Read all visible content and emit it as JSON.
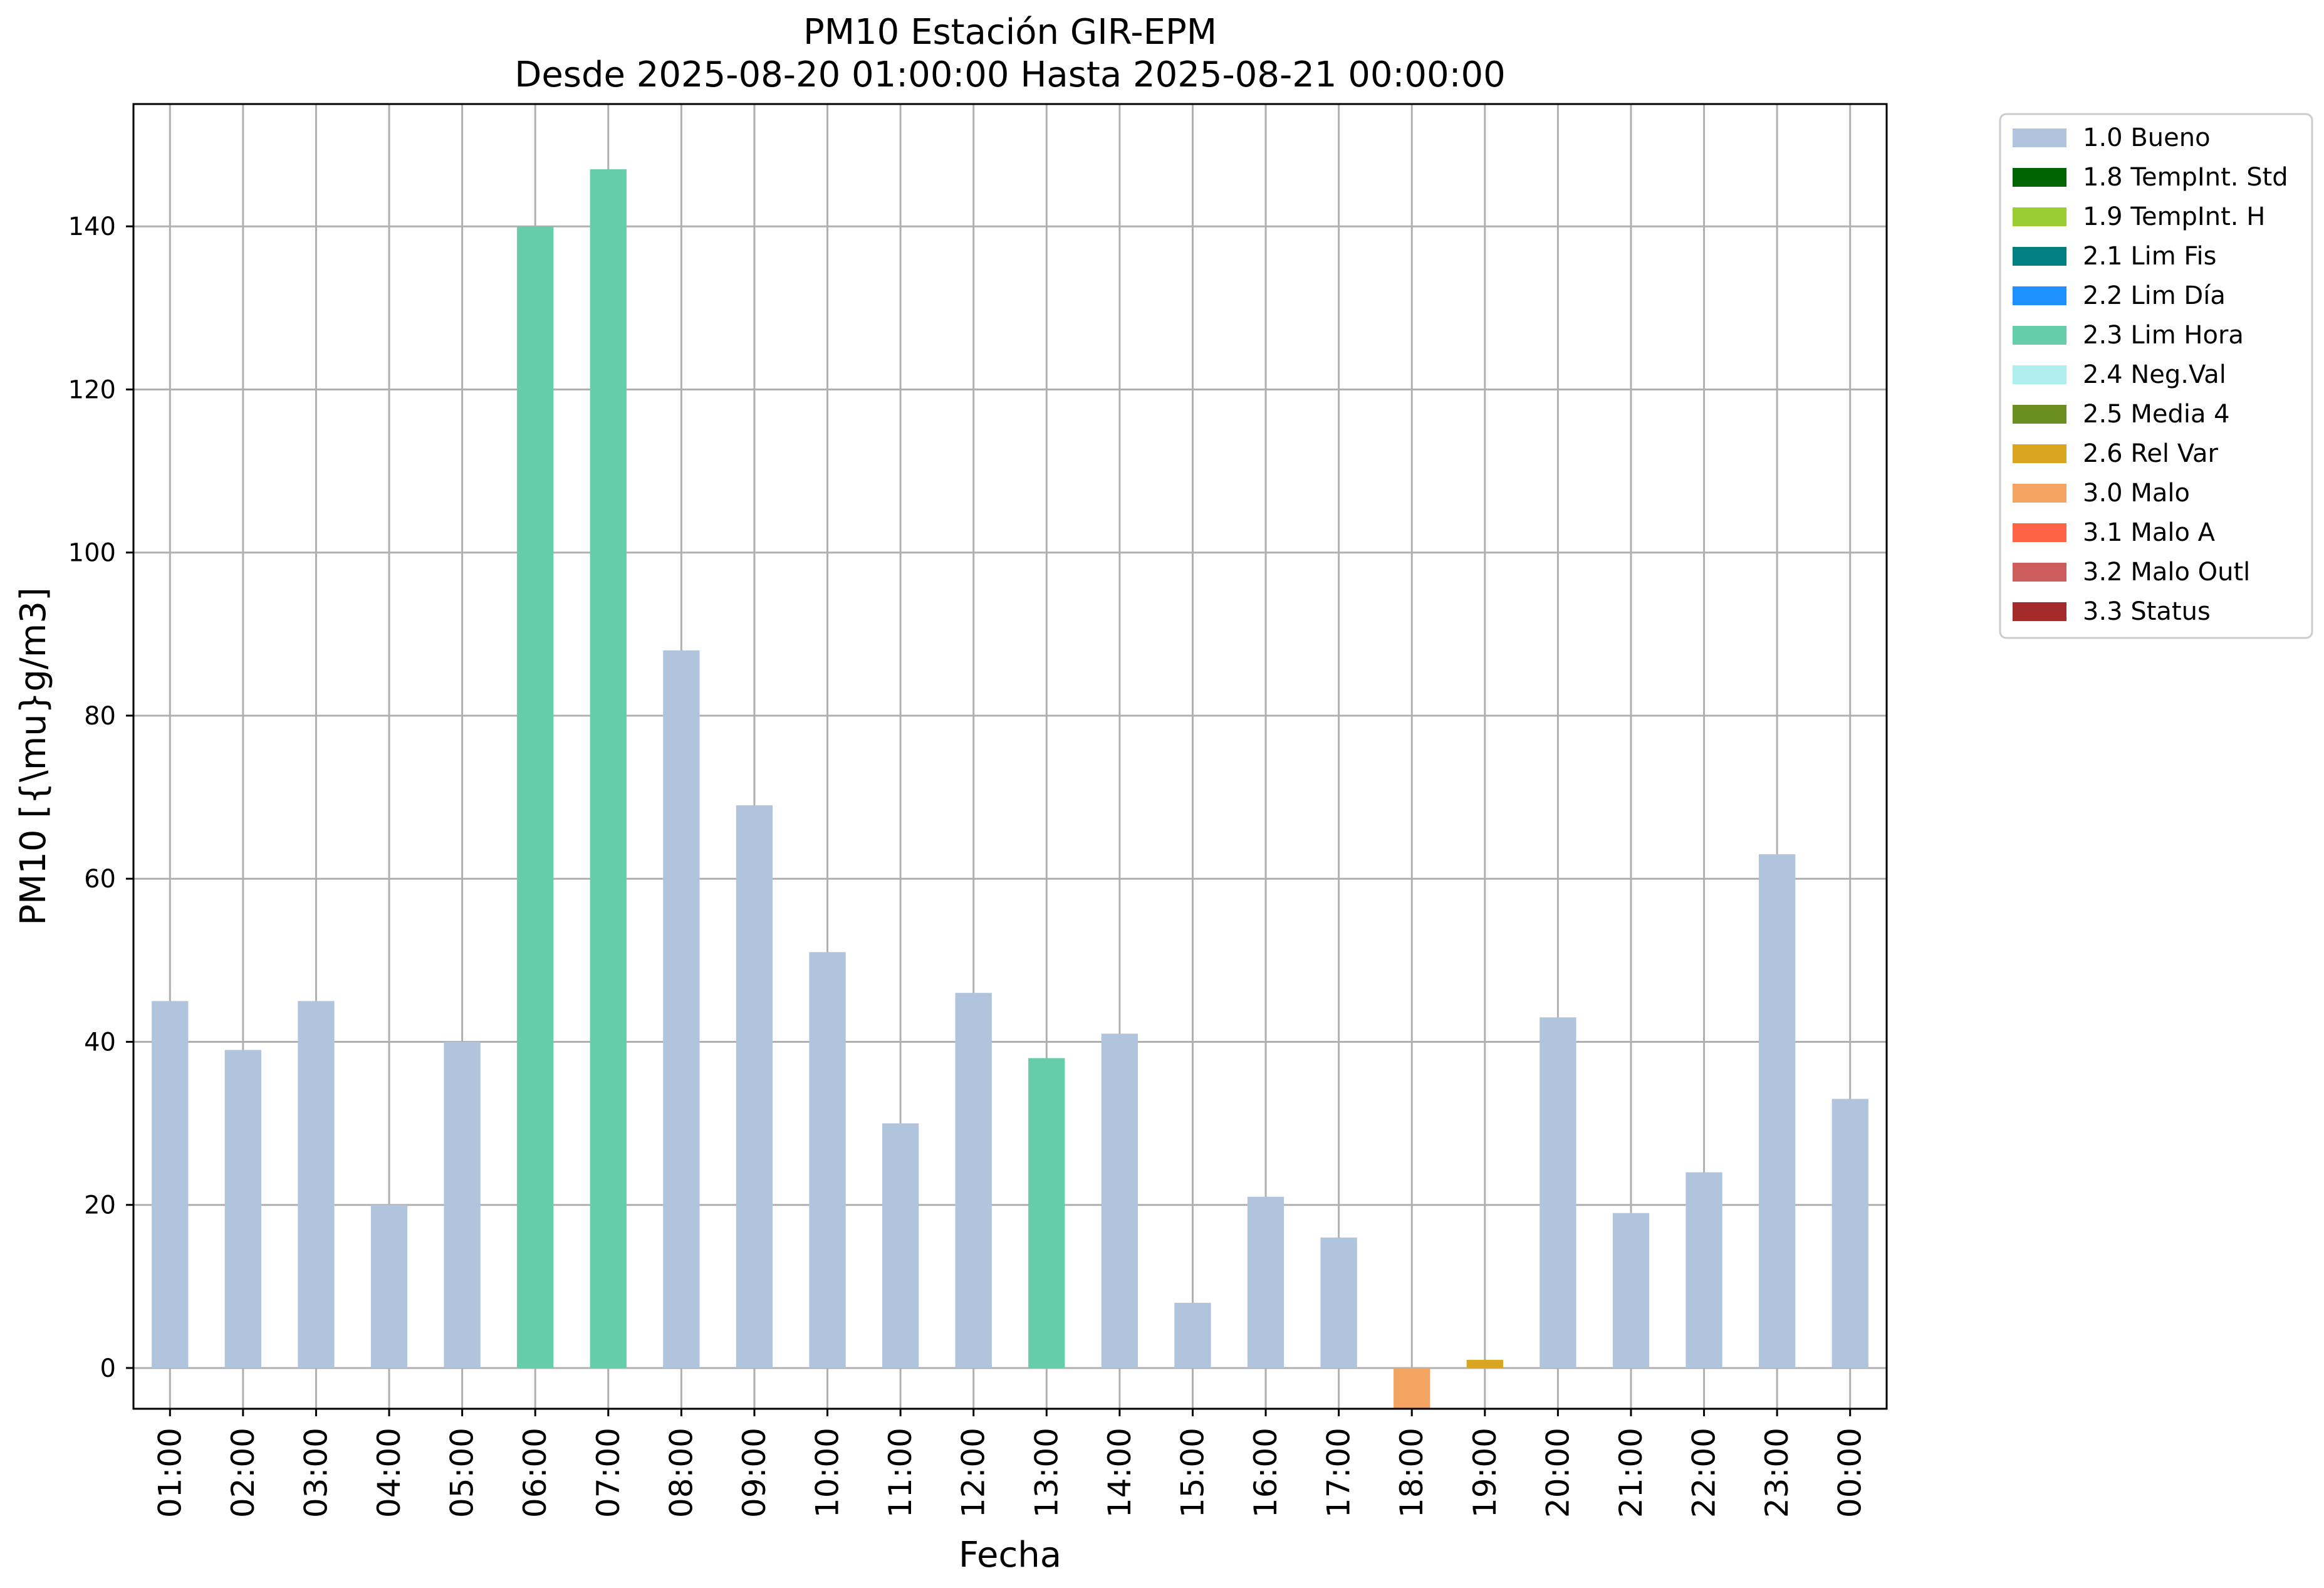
{
  "chart_data": {
    "type": "bar",
    "title": "PM10 Estación GIR-EPM",
    "subtitle": "Desde 2025-08-20 01:00:00 Hasta 2025-08-21 00:00:00",
    "xlabel": "Fecha",
    "ylabel": "PM10 [{\\mu}g/m3]",
    "ylim": [
      -5,
      155
    ],
    "yticks": [
      0,
      20,
      40,
      60,
      80,
      100,
      120,
      140
    ],
    "grid": true,
    "legend_position": "outside-right-top",
    "categories": [
      "01:00",
      "02:00",
      "03:00",
      "04:00",
      "05:00",
      "06:00",
      "07:00",
      "08:00",
      "09:00",
      "10:00",
      "11:00",
      "12:00",
      "13:00",
      "14:00",
      "15:00",
      "16:00",
      "17:00",
      "18:00",
      "19:00",
      "20:00",
      "21:00",
      "22:00",
      "23:00",
      "00:00"
    ],
    "values": [
      45,
      39,
      45,
      20,
      40,
      140,
      147,
      88,
      69,
      51,
      30,
      46,
      38,
      41,
      8,
      21,
      16,
      -5,
      1,
      43,
      19,
      24,
      63,
      33
    ],
    "flags": [
      "1.0 Bueno",
      "1.0 Bueno",
      "1.0 Bueno",
      "1.0 Bueno",
      "1.0 Bueno",
      "2.3 Lim Hora",
      "2.3 Lim Hora",
      "1.0 Bueno",
      "1.0 Bueno",
      "1.0 Bueno",
      "1.0 Bueno",
      "1.0 Bueno",
      "2.3 Lim Hora",
      "1.0 Bueno",
      "1.0 Bueno",
      "1.0 Bueno",
      "1.0 Bueno",
      "3.0 Malo",
      "2.6 Rel Var",
      "1.0 Bueno",
      "1.0 Bueno",
      "1.0 Bueno",
      "1.0 Bueno",
      "1.0 Bueno"
    ],
    "legend": [
      {
        "label": "1.0 Bueno",
        "color": "#b0c4de"
      },
      {
        "label": "1.8 TempInt. Std",
        "color": "#006400"
      },
      {
        "label": "1.9 TempInt. H",
        "color": "#9acd32"
      },
      {
        "label": "2.1 Lim Fis",
        "color": "#008080"
      },
      {
        "label": "2.2 Lim Día",
        "color": "#1e90ff"
      },
      {
        "label": "2.3 Lim Hora",
        "color": "#66cdaa"
      },
      {
        "label": "2.4 Neg.Val",
        "color": "#afeeee"
      },
      {
        "label": "2.5 Media 4",
        "color": "#6b8e23"
      },
      {
        "label": "2.6 Rel Var",
        "color": "#daa520"
      },
      {
        "label": "3.0 Malo",
        "color": "#f4a460"
      },
      {
        "label": "3.1 Malo A",
        "color": "#ff6347"
      },
      {
        "label": "3.2 Malo Outl",
        "color": "#cd5c5c"
      },
      {
        "label": "3.3 Status",
        "color": "#a52a2a"
      }
    ]
  }
}
